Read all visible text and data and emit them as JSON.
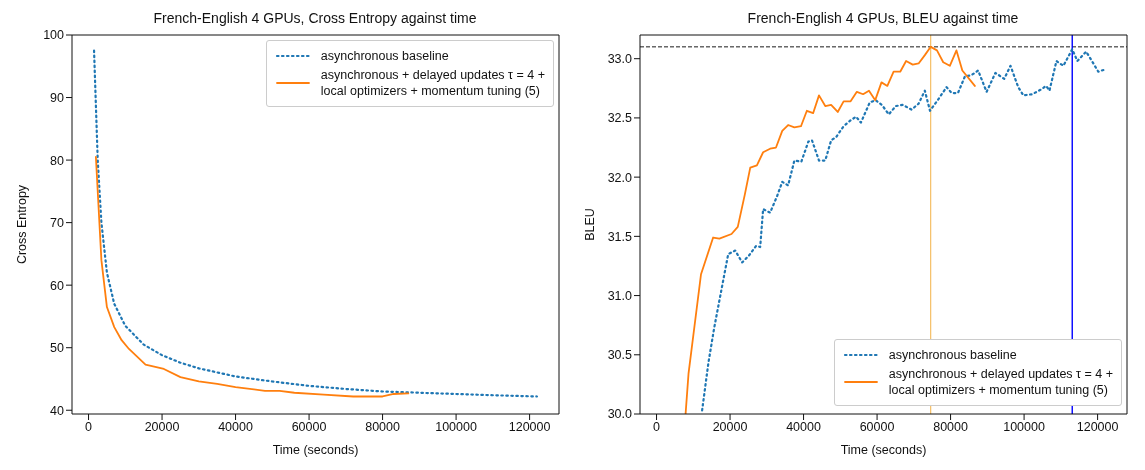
{
  "chart_data": [
    {
      "type": "line",
      "title": "French-English 4 GPUs, Cross Entropy against time",
      "xlabel": "Time (seconds)",
      "ylabel": "Cross Entropy",
      "xlim": [
        -4500,
        128000
      ],
      "xticks": [
        0,
        20000,
        40000,
        60000,
        80000,
        100000,
        120000
      ],
      "ylim": [
        39.4,
        100
      ],
      "yticks": [
        40,
        50,
        60,
        70,
        80,
        90,
        100
      ],
      "legend": "top right",
      "marker": "none",
      "series": [
        {
          "name": "asynchronous baseline",
          "color": "#1f77b4",
          "line_style": "dotted",
          "x": [
            1500,
            2500,
            3500,
            5000,
            7000,
            10000,
            15000,
            20000,
            25000,
            30000,
            40000,
            50000,
            60000,
            70000,
            80000,
            90000,
            100000,
            110000,
            122000
          ],
          "values": [
            97.5,
            80,
            70,
            62,
            57,
            53.5,
            50.5,
            48.8,
            47.6,
            46.7,
            45.4,
            44.6,
            43.9,
            43.4,
            43.0,
            42.8,
            42.6,
            42.4,
            42.2
          ]
        },
        {
          "name": "asynchronous + delayed updates τ = 4 +\nlocal optimizers + momentum tuning (5)",
          "color": "#ff7f0e",
          "line_style": "solid",
          "x": [
            2000,
            3500,
            5000,
            7000,
            9000,
            11000,
            15500,
            20500,
            25000,
            30000,
            35000,
            40000,
            48000,
            52000,
            56000,
            64000,
            72000,
            80000,
            83000,
            87000
          ],
          "values": [
            80.5,
            64,
            56.5,
            53.3,
            51.2,
            49.8,
            47.3,
            46.6,
            45.3,
            44.6,
            44.2,
            43.7,
            43.1,
            43.1,
            42.8,
            42.5,
            42.2,
            42.2,
            42.6,
            42.7
          ]
        }
      ]
    },
    {
      "type": "line",
      "title": "French-English 4 GPUs, BLEU against time",
      "xlabel": "Time (seconds)",
      "ylabel": "BLEU",
      "xlim": [
        -4500,
        128000
      ],
      "xticks": [
        0,
        20000,
        40000,
        60000,
        80000,
        100000,
        120000
      ],
      "ylim": [
        30,
        33.2
      ],
      "yticks": [
        {
          "value": 30,
          "label": "30.0"
        },
        30.5,
        {
          "value": 31,
          "label": "31.0"
        },
        31.5,
        {
          "value": 32,
          "label": "32.0"
        },
        32.5,
        {
          "value": 33,
          "label": "33.0"
        }
      ],
      "legend": "bottom right",
      "marker": "none",
      "ref_lines": [
        {
          "axis": "y",
          "value": 33.1,
          "color": "#000000",
          "line_style": "dashed"
        },
        {
          "axis": "x",
          "value": 74600,
          "color": "#f0a830",
          "line_style": "solid"
        },
        {
          "axis": "x",
          "value": 113100,
          "color": "#0000ff",
          "line_style": "solid"
        }
      ],
      "series": [
        {
          "name": "asynchronous baseline",
          "color": "#1f77b4",
          "line_style": "dotted",
          "x": [
            12400,
            14100,
            15700,
            17600,
            19500,
            21400,
            23300,
            25200,
            27100,
            28200,
            29000,
            30900,
            32800,
            34200,
            35800,
            37500,
            39400,
            41300,
            42300,
            44200,
            45900,
            47500,
            48900,
            50900,
            52800,
            54300,
            55600,
            58000,
            59600,
            61300,
            63200,
            65100,
            67000,
            69400,
            71300,
            73000,
            74400,
            76500,
            78900,
            80300,
            82000,
            83900,
            85600,
            87500,
            89800,
            92200,
            94600,
            96300,
            98400,
            99800,
            102200,
            104600,
            106000,
            106900,
            108800,
            110700,
            113100,
            114500,
            116900,
            120200,
            122100
          ],
          "values": [
            30.03,
            30.43,
            30.73,
            31.04,
            31.35,
            31.38,
            31.28,
            31.34,
            31.42,
            31.41,
            31.73,
            31.7,
            31.84,
            31.96,
            31.93,
            32.14,
            32.13,
            32.3,
            32.31,
            32.14,
            32.14,
            32.31,
            32.34,
            32.43,
            32.48,
            32.51,
            32.46,
            32.63,
            32.65,
            32.61,
            32.53,
            32.6,
            32.61,
            32.57,
            32.62,
            32.73,
            32.56,
            32.65,
            32.76,
            32.71,
            32.71,
            32.85,
            32.86,
            32.9,
            32.72,
            32.88,
            32.83,
            32.94,
            32.76,
            32.69,
            32.7,
            32.74,
            32.77,
            32.73,
            32.98,
            32.94,
            33.08,
            32.98,
            33.06,
            32.89,
            32.91
          ]
        },
        {
          "name": "asynchronous + delayed updates τ = 4 +\nlocal optimizers + momentum tuning (5)",
          "color": "#ff7f0e",
          "line_style": "solid",
          "x": [
            7900,
            8700,
            12100,
            15400,
            17100,
            20400,
            22100,
            24000,
            25500,
            27300,
            29000,
            30900,
            32500,
            34200,
            35800,
            37500,
            39300,
            40900,
            42600,
            44200,
            45900,
            47500,
            49300,
            50900,
            52800,
            54500,
            56200,
            57800,
            59500,
            61200,
            62800,
            64500,
            66300,
            67900,
            69700,
            71300,
            73000,
            74600,
            76300,
            78000,
            79800,
            81600,
            83200,
            86600
          ],
          "values": [
            30.0,
            30.34,
            31.18,
            31.49,
            31.48,
            31.52,
            31.58,
            31.85,
            32.08,
            32.1,
            32.21,
            32.24,
            32.25,
            32.39,
            32.44,
            32.42,
            32.43,
            32.56,
            32.54,
            32.69,
            32.6,
            32.61,
            32.55,
            32.64,
            32.64,
            32.72,
            32.7,
            32.73,
            32.65,
            32.8,
            32.77,
            32.89,
            32.89,
            32.98,
            32.95,
            32.96,
            33.03,
            33.1,
            33.07,
            32.97,
            32.94,
            33.07,
            32.9,
            32.77
          ]
        }
      ]
    }
  ]
}
